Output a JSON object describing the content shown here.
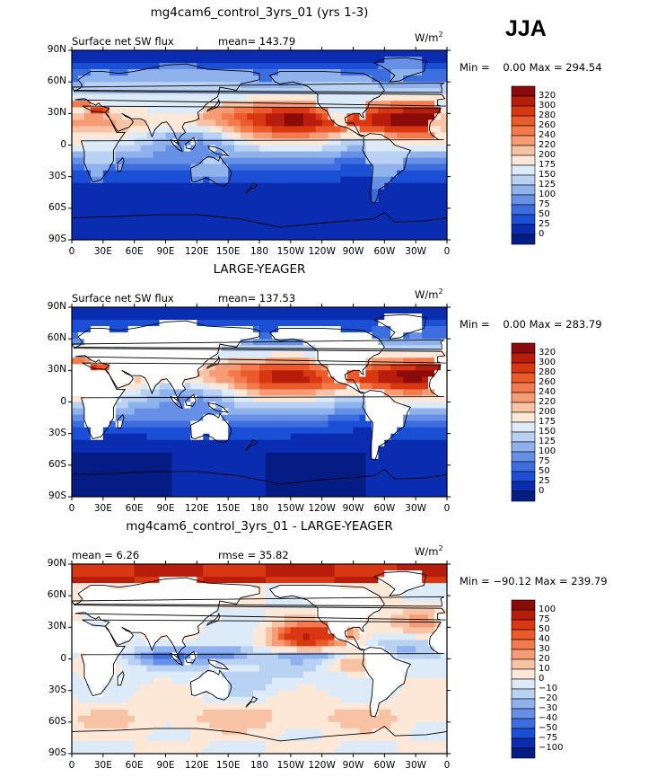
{
  "season": "JJA",
  "panels": [
    {
      "title": "mg4cam6_control_3yrs_01 (yrs 1-3)",
      "left_text": "Surface net SW flux",
      "center_text": "mean= 143.79",
      "units": "W/m",
      "units_sup": "2",
      "minmax": "Min =    0.00 Max = 294.54",
      "colorbar_labels": [
        "320",
        "300",
        "280",
        "260",
        "240",
        "220",
        "200",
        "175",
        "150",
        "125",
        "100",
        "75",
        "50",
        "25",
        "0"
      ],
      "colorbar_colors": [
        "#8b0a0a",
        "#b81d0c",
        "#d93612",
        "#ea5a2a",
        "#f27a4c",
        "#f59c74",
        "#f8c2a4",
        "#fde8d8",
        "#ddeaf8",
        "#b9d1f3",
        "#8fb2ed",
        "#6690e6",
        "#3d6ee0",
        "#1a4fd6",
        "#0a2cb0",
        "#061c85"
      ],
      "map_type": "sw_control"
    },
    {
      "title": "LARGE-YEAGER",
      "left_text": "Surface net SW flux",
      "center_text": "mean= 137.53",
      "units": "W/m",
      "units_sup": "2",
      "minmax": "Min =    0.00 Max = 283.79",
      "colorbar_labels": [
        "320",
        "300",
        "280",
        "260",
        "240",
        "220",
        "200",
        "175",
        "150",
        "125",
        "100",
        "75",
        "50",
        "25",
        "0"
      ],
      "colorbar_colors": [
        "#8b0a0a",
        "#b81d0c",
        "#d93612",
        "#ea5a2a",
        "#f27a4c",
        "#f59c74",
        "#f8c2a4",
        "#fde8d8",
        "#ddeaf8",
        "#b9d1f3",
        "#8fb2ed",
        "#6690e6",
        "#3d6ee0",
        "#1a4fd6",
        "#0a2cb0",
        "#061c85"
      ],
      "map_type": "sw_obs"
    },
    {
      "title": "mg4cam6_control_3yrs_01 - LARGE-YEAGER",
      "left_text": "mean =    6.26",
      "center_text": "rmse =   35.82",
      "units": "W/m",
      "units_sup": "2",
      "minmax": "Min = −90.12 Max = 239.79",
      "colorbar_labels": [
        "100",
        "75",
        "50",
        "40",
        "30",
        "20",
        "10",
        "0",
        "−10",
        "−20",
        "−30",
        "−40",
        "−50",
        "−75",
        "−100"
      ],
      "colorbar_colors": [
        "#8b0a0a",
        "#b81d0c",
        "#d93612",
        "#ea5a2a",
        "#f27a4c",
        "#f59c74",
        "#f8c2a4",
        "#fde8d8",
        "#ddeaf8",
        "#b9d1f3",
        "#8fb2ed",
        "#6690e6",
        "#3d6ee0",
        "#1a4fd6",
        "#0a2cb0",
        "#061c85"
      ],
      "map_type": "diff"
    }
  ],
  "lat_labels": [
    "90N",
    "60N",
    "30N",
    "0",
    "30S",
    "60S",
    "90S"
  ],
  "lon_labels": [
    "0",
    "30E",
    "60E",
    "90E",
    "120E",
    "150E",
    "180",
    "150W",
    "120W",
    "90W",
    "60W",
    "30W",
    "0"
  ]
}
